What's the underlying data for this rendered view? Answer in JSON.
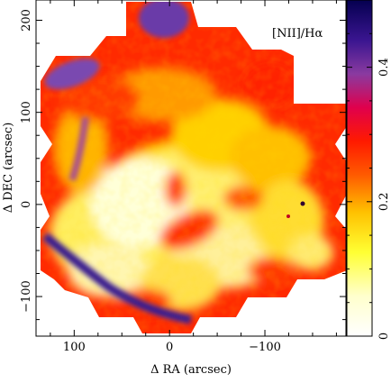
{
  "chart_data": {
    "type": "heatmap",
    "annotation": "[NII]/Hα",
    "xlabel": "Δ RA (arcsec)",
    "ylabel": "Δ DEC (arcsec)",
    "xlim": [
      140,
      -185
    ],
    "ylim": [
      -143,
      222
    ],
    "x_ticks": [
      100,
      0,
      -100
    ],
    "x_tick_labels": [
      "100",
      "0",
      "−100"
    ],
    "y_ticks": [
      200,
      100,
      0,
      -100
    ],
    "y_tick_labels": [
      "200",
      "100",
      "0",
      "−100"
    ],
    "colorbar": {
      "range": [
        0,
        0.5
      ],
      "ticks": [
        0,
        0.2,
        0.4
      ],
      "tick_labels": [
        "0",
        "0.2",
        "0.4"
      ],
      "colormap": [
        "#ffffff",
        "#ffff66",
        "#ffcc00",
        "#ff6a00",
        "#ff1a00",
        "#e0004a",
        "#7a3aa0",
        "#2a1080",
        "#050050"
      ]
    },
    "map_colors": {
      "background": "#ff2a00",
      "low": "#ffffe0",
      "mid": "#ffd200",
      "high": "#7040b0"
    }
  }
}
